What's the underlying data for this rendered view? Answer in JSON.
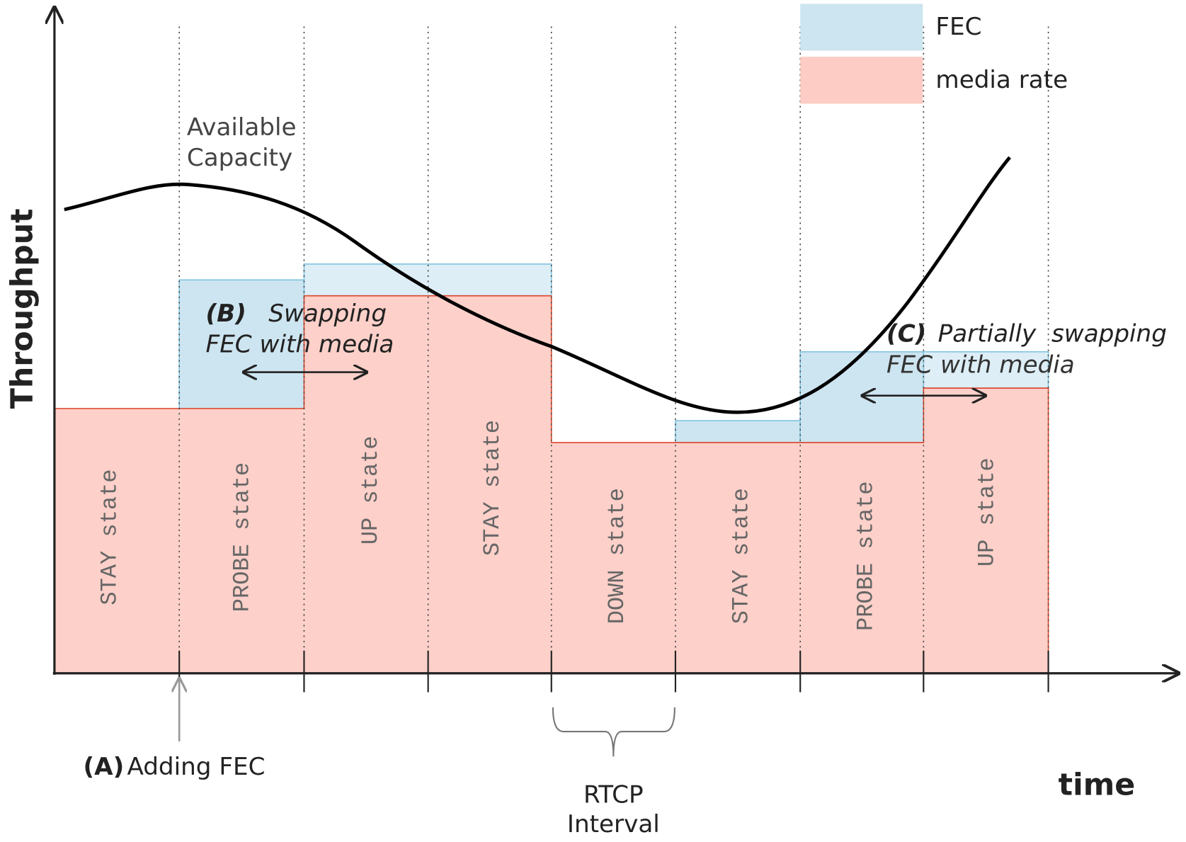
{
  "axes": {
    "y_label": "Throughput",
    "x_label": "time"
  },
  "legend": [
    {
      "label": "FEC"
    },
    {
      "label": "media rate"
    }
  ],
  "capacity_label": [
    "Available",
    "Capacity"
  ],
  "states": [
    "STAY state",
    "PROBE state",
    "UP state",
    "STAY state",
    "DOWN state",
    "STAY state",
    "PROBE state",
    "UP state"
  ],
  "annotations": {
    "a": {
      "tag": "(A)",
      "text": "Adding FEC"
    },
    "b": {
      "tag": "(B)",
      "text": [
        "Swapping",
        "FEC with media"
      ]
    },
    "c": {
      "tag": "(C)",
      "text": [
        "Partially  swapping",
        "FEC with media"
      ]
    },
    "rtcp": [
      "RTCP",
      "Interval"
    ]
  }
}
